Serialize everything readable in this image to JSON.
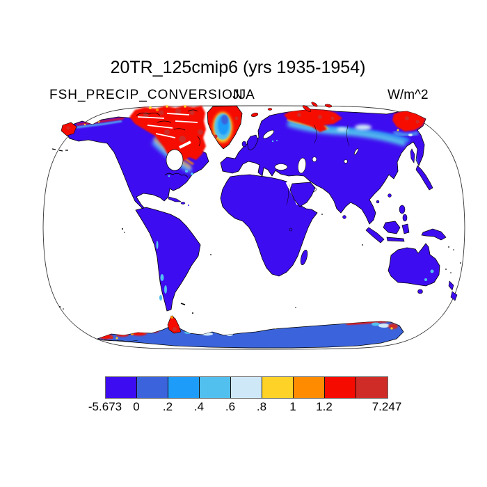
{
  "header": {
    "title": "20TR_125cmip6 (yrs 1935-1954)",
    "subtitle_left": "FSH_PRECIP_CONVERSION",
    "subtitle_center": "JJA",
    "units": "W/m^2"
  },
  "chart_data": {
    "type": "heatmap",
    "title": "20TR_125cmip6 (yrs 1935-1954)",
    "field": "FSH_PRECIP_CONVERSION",
    "season": "JJA",
    "units": "W/m^2",
    "projection": "robinson-like global map, white ocean, black coastlines",
    "colorbar": {
      "levels": [
        "-5.673",
        "0",
        ".2",
        ".4",
        ".6",
        ".8",
        "1",
        "1.2",
        "7.247"
      ],
      "label_edge_indices": [
        0,
        1,
        2,
        3,
        4,
        5,
        6,
        7,
        9
      ],
      "colors": [
        "#3e0cf0",
        "#3b64dc",
        "#1e9cfa",
        "#52c0ee",
        "#cfe8f8",
        "#ffd227",
        "#ff8c00",
        "#f60b00",
        "#cf2c27"
      ],
      "min": -5.673,
      "max": 7.247
    },
    "regions": [
      {
        "name": "most land (N+S America, Africa, Eurasia, Australia)",
        "bin": "-5.673 to 0 (deep violet)"
      },
      {
        "name": "antarctica interior",
        "bin": "0 to 0.2 (royal blue)"
      },
      {
        "name": "canadian arctic archipelago + baffin + labrador",
        "bin": "1.2 to 7.247 (red/dark red with orange-gold fringe)"
      },
      {
        "name": "greenland rim",
        "bin": "1.2 to 7.247 (red)"
      },
      {
        "name": "greenland interior",
        "bin": "0.2 to 0.8 (dodger/sky blue core)"
      },
      {
        "name": "north siberian coast + taymyr",
        "bin": "1 to 7.247 (red) with 0.2-0.8 cyan/pale fringe"
      },
      {
        "name": "chukotka / ne siberia",
        "bin": "1.2 to 7.247 (red)"
      },
      {
        "name": "antarctic coast spots + peninsula",
        "bin": "1 to 7.247 (red/orange/gold)"
      },
      {
        "name": "patagonia / andes patches",
        "bin": "0.2 to 0.4 (sky blue)"
      },
      {
        "name": "ocean",
        "bin": "no data (white)"
      }
    ]
  },
  "colors": {
    "ocean": "#ffffff",
    "coastline": "#000000",
    "map_outline": "#333333",
    "text": "#000000"
  }
}
